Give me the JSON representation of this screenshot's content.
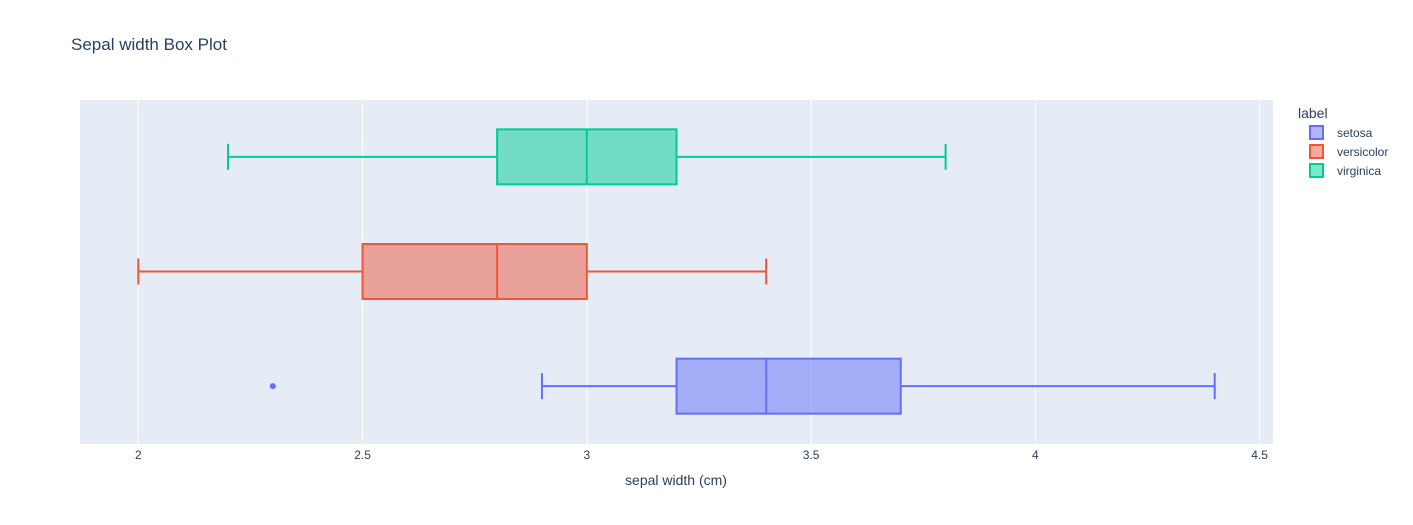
{
  "chart_data": {
    "type": "box",
    "orientation": "horizontal",
    "title": "Sepal width Box Plot",
    "xlabel": "sepal width (cm)",
    "ylabel": "",
    "xlim": [
      1.87,
      4.53
    ],
    "xticks": [
      2,
      2.5,
      3,
      3.5,
      4,
      4.5
    ],
    "xtick_labels": [
      "2",
      "2.5",
      "3",
      "3.5",
      "4",
      "4.5"
    ],
    "grid": true,
    "legend": {
      "title": "label",
      "position": "top-right"
    },
    "series": [
      {
        "name": "setosa",
        "color": "#636efa",
        "min": 2.9,
        "q1": 3.2,
        "median": 3.4,
        "q3": 3.7,
        "max": 4.4,
        "outliers": [
          2.3
        ]
      },
      {
        "name": "versicolor",
        "color": "#EF553B",
        "min": 2.0,
        "q1": 2.5,
        "median": 2.8,
        "q3": 3.0,
        "max": 3.4,
        "outliers": []
      },
      {
        "name": "virginica",
        "color": "#00cc96",
        "min": 2.2,
        "q1": 2.8,
        "median": 3.0,
        "q3": 3.2,
        "max": 3.8,
        "outliers": []
      }
    ]
  }
}
